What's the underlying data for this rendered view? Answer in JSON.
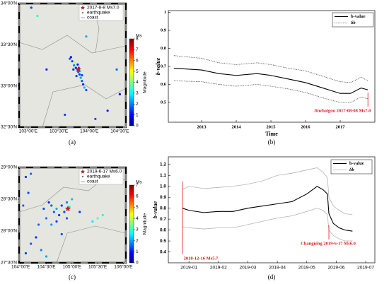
{
  "chart_data": [
    {
      "type": "map",
      "caption": "(a)",
      "xlim": [
        102.85,
        104.6
      ],
      "ylim": [
        32.5,
        34.0
      ],
      "xticks": [
        {
          "value": 103,
          "label": "103°00'E"
        },
        {
          "value": 103.5,
          "label": "103°30'E"
        },
        {
          "value": 104,
          "label": "104°00'E"
        },
        {
          "value": 104.5,
          "label": "104°30'E"
        }
      ],
      "yticks": [
        {
          "value": 32.5,
          "label": "32°30'N"
        },
        {
          "value": 33,
          "label": "33°00'N"
        },
        {
          "value": 33.5,
          "label": "33°30'N"
        },
        {
          "value": 34,
          "label": "34°00'N"
        }
      ],
      "series": [
        {
          "name": "2017-8-8 Ms7.0",
          "color": "#e8141c",
          "x": [
            103.82
          ],
          "values": [
            33.2
          ]
        },
        {
          "name": "earthquake",
          "x": [
            103.72,
            103.75,
            103.78,
            103.8,
            103.82,
            103.84,
            103.86,
            103.88,
            103.9,
            103.92,
            103.7,
            103.68,
            103.76,
            103.83,
            103.79,
            103.85,
            103.74,
            103.88,
            103.81,
            103.95,
            103.05,
            103.15,
            104.4,
            104.45,
            103.3,
            104.1,
            104.3,
            103.6,
            103.95,
            104.5
          ],
          "values": [
            33.3,
            33.25,
            33.22,
            33.2,
            33.17,
            33.14,
            33.1,
            33.06,
            33.02,
            32.98,
            33.35,
            33.33,
            33.28,
            33.22,
            33.12,
            33.18,
            33.2,
            33.13,
            33.26,
            32.95,
            33.95,
            33.85,
            33.9,
            33.2,
            33.2,
            32.6,
            32.7,
            32.65,
            33.6,
            32.9
          ],
          "magnitudes": [
            1.5,
            2,
            1.2,
            3,
            1.8,
            1.4,
            2.2,
            1.6,
            1.3,
            2.5,
            1.1,
            1.7,
            4.5,
            1.9,
            1.4,
            2.8,
            1.3,
            1.5,
            1.2,
            1.6,
            1.5,
            3.2,
            1.4,
            1.8,
            1.3,
            1.6,
            1.2,
            1.5,
            2.3,
            1.1
          ]
        },
        {
          "name": "coast",
          "color": "#8c8c8c"
        }
      ],
      "colorbar": {
        "title": "Ms",
        "label": "Magnitude",
        "lim": [
          0,
          8
        ],
        "ticks": [
          0,
          1,
          2,
          3,
          4,
          5,
          6,
          7,
          8
        ]
      }
    },
    {
      "type": "line",
      "caption": "(b)",
      "xlabel": "Time",
      "ylabel": "b-value",
      "xlim": [
        2012.04,
        2018.0
      ],
      "ylim": [
        0.39,
        1.01
      ],
      "xticks": [
        2013,
        2014,
        2015,
        2016,
        2017
      ],
      "yticks": [
        0.5,
        0.6,
        0.7,
        0.8,
        0.9,
        1
      ],
      "x": [
        2012.2,
        2013,
        2013.5,
        2014,
        2014.6,
        2015,
        2015.5,
        2016,
        2016.5,
        2017,
        2017.3,
        2017.6,
        2017.8
      ],
      "series": [
        {
          "name": "b-value",
          "color": "#000000",
          "style": "solid",
          "values": [
            0.69,
            0.68,
            0.66,
            0.65,
            0.66,
            0.65,
            0.63,
            0.61,
            0.58,
            0.55,
            0.55,
            0.58,
            0.57
          ]
        },
        {
          "name": "δb",
          "color": "#444444",
          "style": "dotted",
          "values": [
            0.76,
            0.745,
            0.72,
            0.71,
            0.72,
            0.71,
            0.69,
            0.675,
            0.645,
            0.615,
            0.61,
            0.64,
            0.62
          ],
          "lower": [
            0.62,
            0.615,
            0.6,
            0.59,
            0.6,
            0.59,
            0.575,
            0.555,
            0.525,
            0.5,
            0.5,
            0.53,
            0.52
          ]
        }
      ],
      "annotations": [
        {
          "text": "Jinzhaigou 2017-08-08 Ms7.0",
          "x": 2017.8
        }
      ]
    },
    {
      "type": "map",
      "caption": "(c)",
      "xlim": [
        103.97,
        106.05
      ],
      "ylim": [
        27.5,
        29.0
      ],
      "xticks": [
        {
          "value": 104,
          "label": "104°00'E"
        },
        {
          "value": 104.5,
          "label": "104°30'E"
        },
        {
          "value": 105,
          "label": "105°00'E"
        },
        {
          "value": 105.5,
          "label": "105°30'E"
        },
        {
          "value": 106,
          "label": "106°00'E"
        }
      ],
      "yticks": [
        {
          "value": 27.5,
          "label": "27°30'N"
        },
        {
          "value": 28,
          "label": "28°00'N"
        },
        {
          "value": 28.5,
          "label": "28°30'N"
        },
        {
          "value": 29,
          "label": "29°00'N"
        }
      ],
      "series": [
        {
          "name": "2019-6-17 Ms6.0",
          "color": "#e8141c",
          "x": [
            104.92
          ],
          "values": [
            28.35
          ]
        },
        {
          "name": "earthquake",
          "x": [
            104.6,
            104.7,
            104.8,
            104.9,
            104.95,
            104.85,
            104.75,
            104.65,
            104.55,
            104.5,
            105.0,
            104.9,
            104.7,
            104.6,
            104.45,
            104.35,
            104.3,
            104.2,
            104.1,
            104.4,
            105.4,
            105.5,
            105.6,
            104.15,
            104.1,
            104.2,
            104.05,
            105.15,
            104.8,
            104.5
          ],
          "values": [
            28.4,
            28.35,
            28.4,
            28.45,
            28.38,
            28.3,
            28.25,
            28.3,
            28.45,
            28.2,
            28.5,
            28.2,
            28.15,
            28.1,
            28.35,
            28.1,
            27.9,
            27.8,
            27.65,
            27.7,
            28.15,
            28.2,
            28.25,
            28.6,
            28.85,
            28.9,
            28.4,
            28.3,
            27.95,
            27.6
          ],
          "magnitudes": [
            1.5,
            2,
            1.3,
            1.8,
            2.6,
            1.4,
            1.2,
            1.6,
            1.1,
            1.7,
            2.2,
            1.5,
            1.3,
            1.9,
            1.4,
            1.6,
            1.2,
            1.5,
            1.3,
            1.8,
            2.5,
            3.1,
            2.8,
            1.4,
            1.2,
            1.6,
            1.5,
            1.3,
            1.4,
            2
          ]
        },
        {
          "name": "coast",
          "color": "#8c8c8c"
        }
      ],
      "colorbar": {
        "title": "Ms",
        "label": "Magnitude",
        "lim": [
          0,
          7
        ],
        "ticks": [
          0,
          1,
          2,
          3,
          4,
          5,
          6,
          7
        ]
      }
    },
    {
      "type": "line",
      "caption": "(d)",
      "ylabel": "b-value",
      "xlim": [
        0.3,
        7.31
      ],
      "ylim": [
        0.3,
        1.27
      ],
      "xticks": [
        {
          "value": 1,
          "label": "2019-01"
        },
        {
          "value": 2,
          "label": "2019-02"
        },
        {
          "value": 3,
          "label": "2019-03"
        },
        {
          "value": 4,
          "label": "2019-04"
        },
        {
          "value": 5,
          "label": "2019-05"
        },
        {
          "value": 6,
          "label": "2019-06"
        },
        {
          "value": 7,
          "label": "2019-07"
        }
      ],
      "yticks": [
        0.4,
        0.5,
        0.6,
        0.7,
        0.8,
        0.9,
        {
          "value": 1,
          "label": "1.0"
        },
        1.1,
        1.2
      ],
      "x": [
        0.78,
        1.0,
        1.5,
        2.0,
        2.5,
        3.0,
        3.5,
        4.0,
        4.5,
        5.0,
        5.35,
        5.55,
        5.7,
        5.75,
        5.9,
        6.1,
        6.3,
        6.55
      ],
      "series": [
        {
          "name": "b-value",
          "color": "#000000",
          "style": "solid",
          "values": [
            0.8,
            0.78,
            0.76,
            0.77,
            0.77,
            0.8,
            0.82,
            0.84,
            0.86,
            0.93,
            1.0,
            0.97,
            0.93,
            0.75,
            0.66,
            0.62,
            0.6,
            0.59
          ]
        },
        {
          "name": "δb",
          "color": "#b4b4b4",
          "style": "solid",
          "values": [
            0.97,
            1.0,
            0.98,
            0.99,
            1.0,
            1.02,
            1.05,
            1.1,
            1.12,
            1.15,
            1.17,
            1.13,
            1.08,
            0.9,
            0.82,
            0.78,
            0.75,
            0.74
          ],
          "lower": [
            0.63,
            0.62,
            0.61,
            0.62,
            0.62,
            0.65,
            0.68,
            0.71,
            0.73,
            0.77,
            0.8,
            0.78,
            0.74,
            0.6,
            0.55,
            0.52,
            0.5,
            0.5
          ]
        }
      ],
      "annotations": [
        {
          "text": "2018-12-16 Ms5.7",
          "x": 0.78
        },
        {
          "text": "Changning 2019-6-17 Ms6.0",
          "x": 5.75
        }
      ]
    }
  ]
}
